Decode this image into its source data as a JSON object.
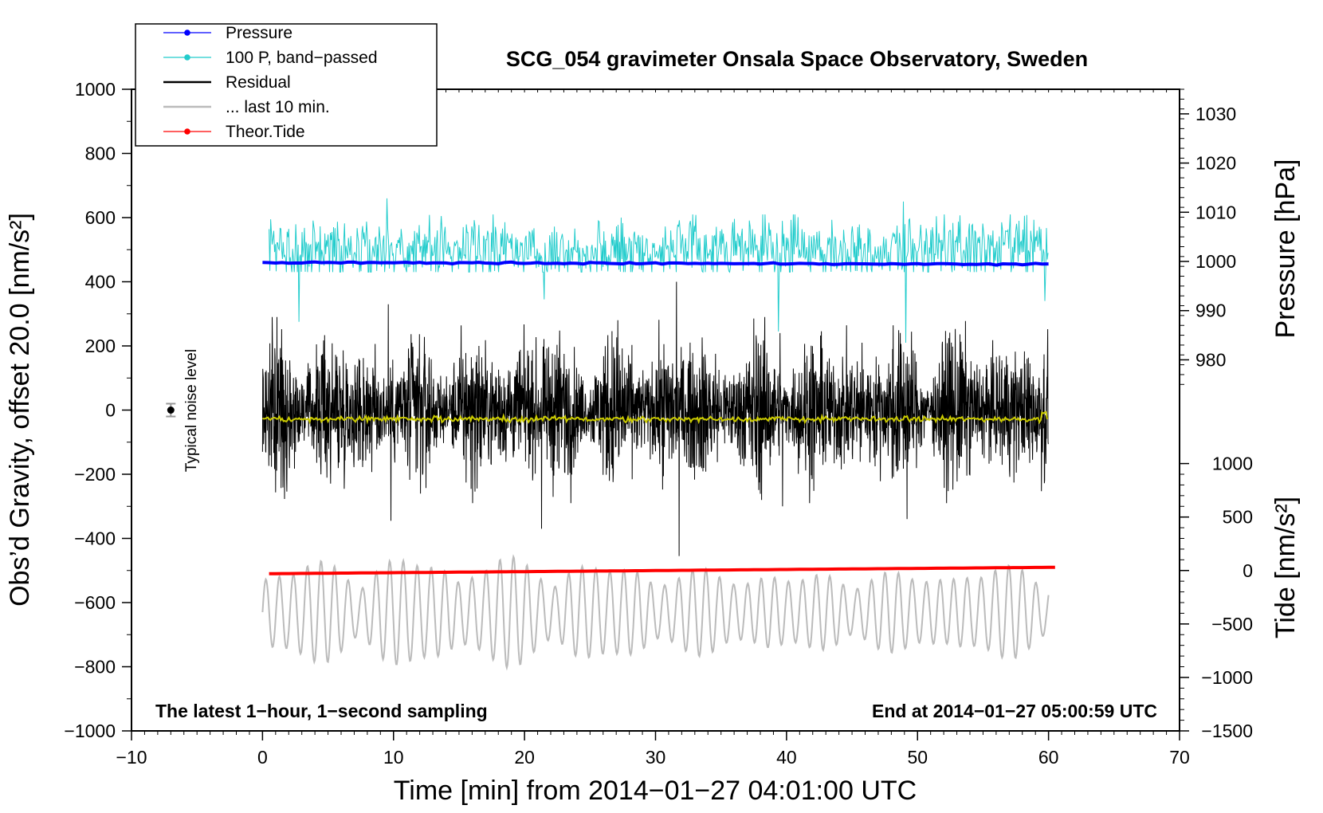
{
  "chart_data": {
    "type": "line",
    "title": "SCG_054 gravimeter Onsala Space Observatory, Sweden",
    "xlabel": "Time [min] from 2014−01−27 04:01:00 UTC",
    "ylabel": "Obs’d Gravity, offset 20.0 [nm/s²]",
    "y2label_pressure": "Pressure [hPa]",
    "y2label_tide": "Tide [nm/s²]",
    "xlim": [
      -10,
      70
    ],
    "ylim": [
      -1000,
      1000
    ],
    "x_ticks": [
      "−10",
      "0",
      "10",
      "20",
      "30",
      "40",
      "50",
      "60",
      "70"
    ],
    "x_tick_values": [
      -10,
      0,
      10,
      20,
      30,
      40,
      50,
      60,
      70
    ],
    "y_ticks": [
      "1000",
      "800",
      "600",
      "400",
      "200",
      "0",
      "−200",
      "−400",
      "−600",
      "−800",
      "−1000"
    ],
    "y_tick_values": [
      1000,
      800,
      600,
      400,
      200,
      0,
      -200,
      -400,
      -600,
      -800,
      -1000
    ],
    "pressure_axis": {
      "ticks": [
        "1030",
        "1020",
        "1010",
        "1000",
        "990",
        "980"
      ],
      "tick_values": [
        1030,
        1020,
        1010,
        1000,
        990,
        980
      ],
      "gravity_equiv": [
        923.33,
        770,
        616.67,
        463.33,
        310,
        156.67
      ]
    },
    "tide_axis": {
      "ticks": [
        "1000",
        "500",
        "0",
        "−500",
        "−1000",
        "−1500"
      ],
      "tick_values": [
        1000,
        500,
        0,
        -500,
        -1000,
        -1500
      ],
      "gravity_equiv": [
        -166.67,
        -333.33,
        -500,
        -666.67,
        -833.33,
        -1000
      ]
    },
    "legend": [
      {
        "label": "Pressure",
        "color": "#0000ff",
        "marker": true
      },
      {
        "label": "100 P, band−passed",
        "color": "#22cccc",
        "marker": true
      },
      {
        "label": "Residual",
        "color": "#000000",
        "marker": false
      },
      {
        "label": "... last 10 min.",
        "color": "#bbbbbb",
        "marker": false
      },
      {
        "label": "Theor.Tide",
        "color": "#ff0000",
        "marker": true
      }
    ],
    "legend_position": "top-left",
    "series": [
      {
        "name": "Pressure",
        "color": "#0000ff",
        "x_range": [
          0,
          60
        ],
        "start": 460,
        "end": 455
      },
      {
        "name": "100 P, band−passed",
        "color": "#22cccc",
        "x_range": [
          0.5,
          60
        ],
        "baseline": 500,
        "amplitude": 60
      },
      {
        "name": "Residual",
        "color": "#000000",
        "x_range": [
          0,
          60
        ],
        "baseline": 0,
        "amplitude": 180,
        "extremes": [
          [
            9.6,
            330
          ],
          [
            9.8,
            -345
          ],
          [
            21.3,
            -370
          ],
          [
            31.6,
            400
          ],
          [
            31.8,
            -455
          ],
          [
            39.5,
            240
          ],
          [
            39.7,
            -300
          ],
          [
            49.2,
            -340
          ]
        ]
      },
      {
        "name": "Residual smoothed",
        "color": "#cccc00",
        "x_range": [
          0,
          60
        ],
        "value": -28
      },
      {
        "name": "... last 10 min.",
        "color": "#bbbbbb",
        "x_range": [
          0,
          60
        ],
        "baseline": -630,
        "amplitude": 150
      },
      {
        "name": "Theor.Tide",
        "color": "#ff0000",
        "x_range": [
          0.5,
          60.5
        ],
        "start": -510,
        "end": -490
      }
    ],
    "noise_marker": {
      "x": -7,
      "value": 0,
      "err": 20
    },
    "annotations": {
      "noise_level": "Typical noise level",
      "left_note": "The latest 1−hour, 1−second sampling",
      "right_note": "End at 2014−01−27 05:00:59 UTC"
    }
  }
}
